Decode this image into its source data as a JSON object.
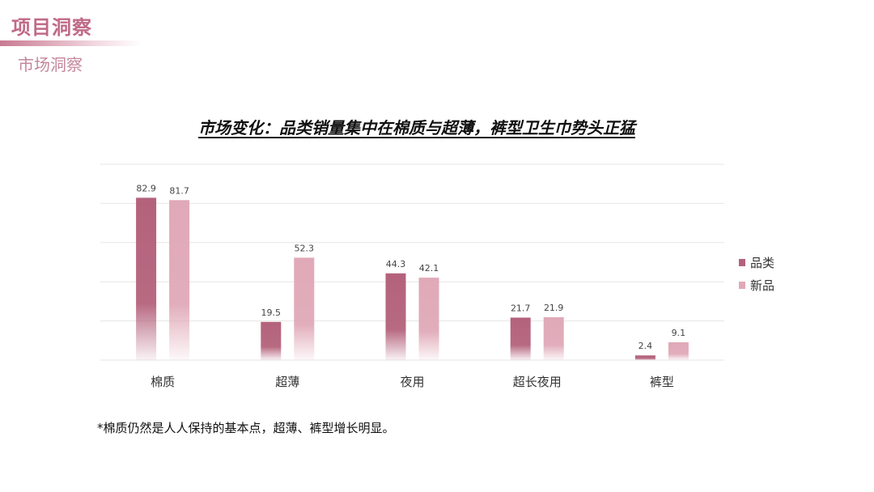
{
  "header": {
    "title": "项目洞察",
    "subtitle": "市场洞察"
  },
  "colors": {
    "series1": "#b4627c",
    "series2": "#e0a9b8",
    "grid": "#e6e6e6",
    "accent": "#c06a86"
  },
  "chart_data": {
    "type": "bar",
    "title": "市场变化：品类销量集中在棉质与超薄，裤型卫生巾势头正猛",
    "categories": [
      "棉质",
      "超薄",
      "夜用",
      "超长夜用",
      "裤型"
    ],
    "series": [
      {
        "name": "品类",
        "values": [
          82.9,
          19.5,
          44.3,
          21.7,
          2.4
        ]
      },
      {
        "name": "新品",
        "values": [
          81.7,
          52.3,
          42.1,
          21.9,
          9.1
        ]
      }
    ],
    "ylim": [
      0,
      100
    ],
    "grid": true,
    "legend": "right"
  },
  "footnote": "*棉质仍然是人人保持的基本点，超薄、裤型增长明显。"
}
